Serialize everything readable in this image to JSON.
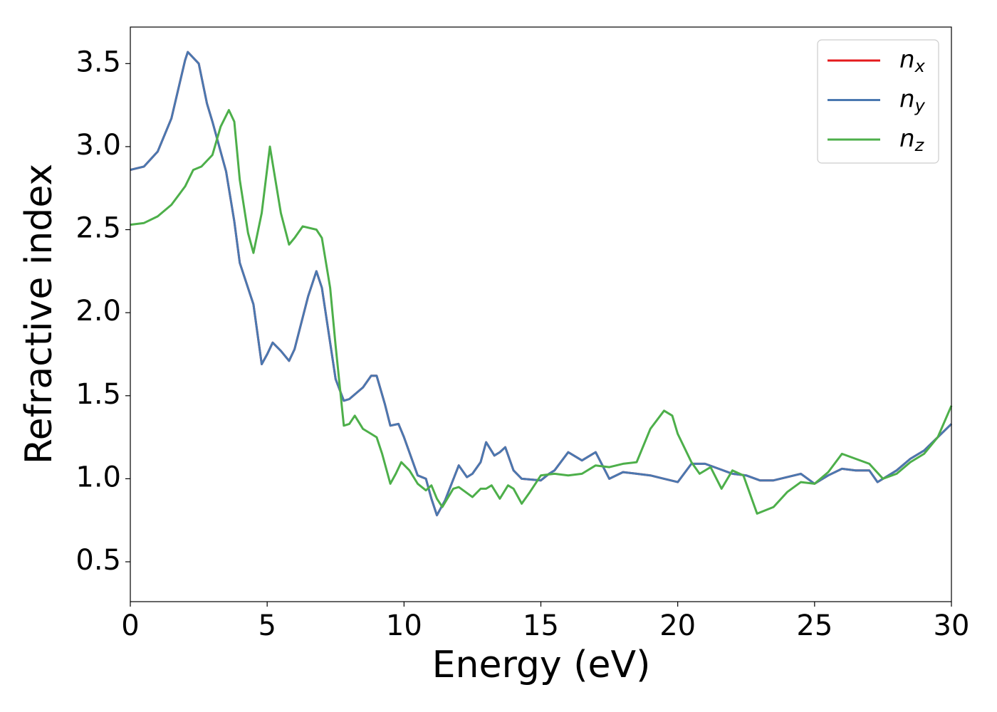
{
  "chart_data": {
    "type": "line",
    "x_label": "Energy (eV)",
    "y_label": "Refractive index",
    "xlim": [
      0,
      30
    ],
    "ylim": [
      0.26,
      3.72
    ],
    "xticks": [
      0,
      5,
      10,
      15,
      20,
      25,
      30
    ],
    "yticks": [
      0.5,
      {
        "value": 1,
        "label": "1.0"
      },
      1.5,
      {
        "value": 2,
        "label": "2.0"
      },
      2.5,
      {
        "value": 3,
        "label": "3.0"
      },
      3.5
    ],
    "legend": "upper right",
    "series": [
      {
        "name": "nx",
        "color": "#e41a1c",
        "x": [
          0,
          0.5,
          1,
          1.5,
          2,
          2.1,
          2.5,
          2.8,
          3,
          3.5,
          3.8,
          4,
          4.5,
          4.8,
          5,
          5.2,
          5.5,
          5.8,
          6,
          6.5,
          6.8,
          7,
          7.5,
          7.8,
          8,
          8.5,
          8.8,
          9,
          9.3,
          9.5,
          9.8,
          10,
          10.5,
          10.8,
          11,
          11.2,
          11.5,
          12,
          12.3,
          12.5,
          12.8,
          13,
          13.3,
          13.5,
          13.7,
          14,
          14.3,
          15,
          15.3,
          15.5,
          16,
          16.5,
          17,
          17.5,
          18,
          18.5,
          19,
          19.5,
          20,
          20.5,
          21,
          21.5,
          22,
          22.5,
          23,
          23.5,
          24,
          24.5,
          25,
          25.5,
          26,
          26.5,
          27,
          27.3,
          28,
          28.5,
          29,
          29.5,
          30
        ],
        "values": [
          2.86,
          2.88,
          2.97,
          3.17,
          3.52,
          3.57,
          3.5,
          3.26,
          3.15,
          2.85,
          2.55,
          2.3,
          2.05,
          1.69,
          1.75,
          1.82,
          1.77,
          1.71,
          1.78,
          2.1,
          2.25,
          2.15,
          1.6,
          1.47,
          1.48,
          1.55,
          1.62,
          1.62,
          1.45,
          1.32,
          1.33,
          1.25,
          1.02,
          1.0,
          0.88,
          0.78,
          0.87,
          1.08,
          1.01,
          1.03,
          1.1,
          1.22,
          1.14,
          1.16,
          1.19,
          1.05,
          1.0,
          0.99,
          1.03,
          1.05,
          1.16,
          1.11,
          1.16,
          1.0,
          1.04,
          1.03,
          1.02,
          1.0,
          0.98,
          1.09,
          1.09,
          1.06,
          1.03,
          1.02,
          0.99,
          0.99,
          1.01,
          1.03,
          0.97,
          1.02,
          1.06,
          1.05,
          1.05,
          0.98,
          1.05,
          1.12,
          1.17,
          1.25,
          1.33
        ]
      },
      {
        "name": "ny",
        "color": "#4a78b0",
        "x": [
          0,
          0.5,
          1,
          1.5,
          2,
          2.1,
          2.5,
          2.8,
          3,
          3.5,
          3.8,
          4,
          4.5,
          4.8,
          5,
          5.2,
          5.5,
          5.8,
          6,
          6.5,
          6.8,
          7,
          7.5,
          7.8,
          8,
          8.5,
          8.8,
          9,
          9.3,
          9.5,
          9.8,
          10,
          10.5,
          10.8,
          11,
          11.2,
          11.5,
          12,
          12.3,
          12.5,
          12.8,
          13,
          13.3,
          13.5,
          13.7,
          14,
          14.3,
          15,
          15.3,
          15.5,
          16,
          16.5,
          17,
          17.5,
          18,
          18.5,
          19,
          19.5,
          20,
          20.5,
          21,
          21.5,
          22,
          22.5,
          23,
          23.5,
          24,
          24.5,
          25,
          25.5,
          26,
          26.5,
          27,
          27.3,
          28,
          28.5,
          29,
          29.5,
          30
        ],
        "values": [
          2.86,
          2.88,
          2.97,
          3.17,
          3.52,
          3.57,
          3.5,
          3.26,
          3.15,
          2.85,
          2.55,
          2.3,
          2.05,
          1.69,
          1.75,
          1.82,
          1.77,
          1.71,
          1.78,
          2.1,
          2.25,
          2.15,
          1.6,
          1.47,
          1.48,
          1.55,
          1.62,
          1.62,
          1.45,
          1.32,
          1.33,
          1.25,
          1.02,
          1.0,
          0.88,
          0.78,
          0.87,
          1.08,
          1.01,
          1.03,
          1.1,
          1.22,
          1.14,
          1.16,
          1.19,
          1.05,
          1.0,
          0.99,
          1.03,
          1.05,
          1.16,
          1.11,
          1.16,
          1.0,
          1.04,
          1.03,
          1.02,
          1.0,
          0.98,
          1.09,
          1.09,
          1.06,
          1.03,
          1.02,
          0.99,
          0.99,
          1.01,
          1.03,
          0.97,
          1.02,
          1.06,
          1.05,
          1.05,
          0.98,
          1.05,
          1.12,
          1.17,
          1.25,
          1.33
        ]
      },
      {
        "name": "nz",
        "color": "#4daf4a",
        "x": [
          0,
          0.5,
          1,
          1.5,
          2,
          2.3,
          2.6,
          3,
          3.3,
          3.6,
          3.8,
          4,
          4.3,
          4.5,
          4.8,
          5.1,
          5.3,
          5.5,
          5.8,
          6,
          6.3,
          6.8,
          7,
          7.3,
          7.5,
          7.8,
          8,
          8.2,
          8.5,
          8.8,
          9,
          9.2,
          9.5,
          9.7,
          9.9,
          10.2,
          10.5,
          10.8,
          11,
          11.2,
          11.4,
          11.8,
          12,
          12.5,
          12.8,
          13,
          13.2,
          13.5,
          13.8,
          14,
          14.3,
          14.6,
          15,
          15.5,
          16,
          16.5,
          17,
          17.5,
          18,
          18.5,
          19,
          19.5,
          19.8,
          20,
          20.5,
          20.8,
          21.2,
          21.6,
          22,
          22.4,
          22.9,
          23.5,
          24,
          24.5,
          25,
          25.5,
          26,
          26.5,
          27,
          27.5,
          28,
          28.5,
          29,
          29.5,
          30
        ],
        "values": [
          2.53,
          2.54,
          2.58,
          2.65,
          2.76,
          2.86,
          2.88,
          2.95,
          3.12,
          3.22,
          3.15,
          2.8,
          2.48,
          2.36,
          2.6,
          3.0,
          2.8,
          2.6,
          2.41,
          2.45,
          2.52,
          2.5,
          2.45,
          2.15,
          1.8,
          1.32,
          1.33,
          1.38,
          1.3,
          1.27,
          1.25,
          1.15,
          0.97,
          1.03,
          1.1,
          1.05,
          0.97,
          0.93,
          0.96,
          0.88,
          0.83,
          0.94,
          0.95,
          0.89,
          0.94,
          0.94,
          0.96,
          0.88,
          0.96,
          0.94,
          0.85,
          0.92,
          1.02,
          1.03,
          1.02,
          1.03,
          1.08,
          1.07,
          1.09,
          1.1,
          1.3,
          1.41,
          1.38,
          1.27,
          1.1,
          1.03,
          1.07,
          0.94,
          1.05,
          1.02,
          0.79,
          0.83,
          0.92,
          0.98,
          0.97,
          1.04,
          1.15,
          1.12,
          1.09,
          1.0,
          1.03,
          1.1,
          1.15,
          1.25,
          1.44
        ]
      }
    ]
  }
}
